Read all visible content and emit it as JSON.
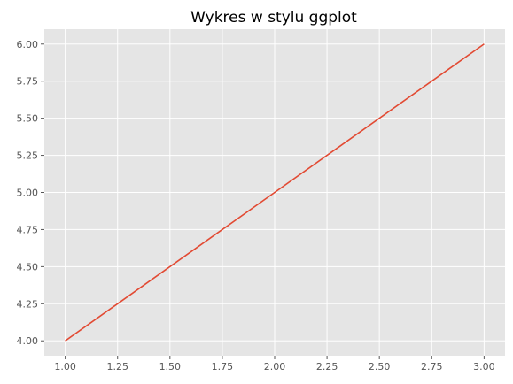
{
  "chart_data": {
    "type": "line",
    "title": "Wykres w stylu ggplot",
    "xlabel": "",
    "ylabel": "",
    "x": [
      1,
      2,
      3
    ],
    "series": [
      {
        "values": [
          4,
          5,
          6
        ],
        "color": "#E24A33"
      }
    ],
    "xlim": [
      0.9,
      3.1
    ],
    "ylim": [
      3.9,
      6.1
    ],
    "x_ticks": [
      "1.00",
      "1.25",
      "1.50",
      "1.75",
      "2.00",
      "2.25",
      "2.50",
      "2.75",
      "3.00"
    ],
    "y_ticks": [
      "4.00",
      "4.25",
      "4.50",
      "4.75",
      "5.00",
      "5.25",
      "5.50",
      "5.75",
      "6.00"
    ],
    "grid": true,
    "colors": {
      "background": "#E5E5E5",
      "grid": "#FFFFFF",
      "text": "#555555"
    }
  }
}
